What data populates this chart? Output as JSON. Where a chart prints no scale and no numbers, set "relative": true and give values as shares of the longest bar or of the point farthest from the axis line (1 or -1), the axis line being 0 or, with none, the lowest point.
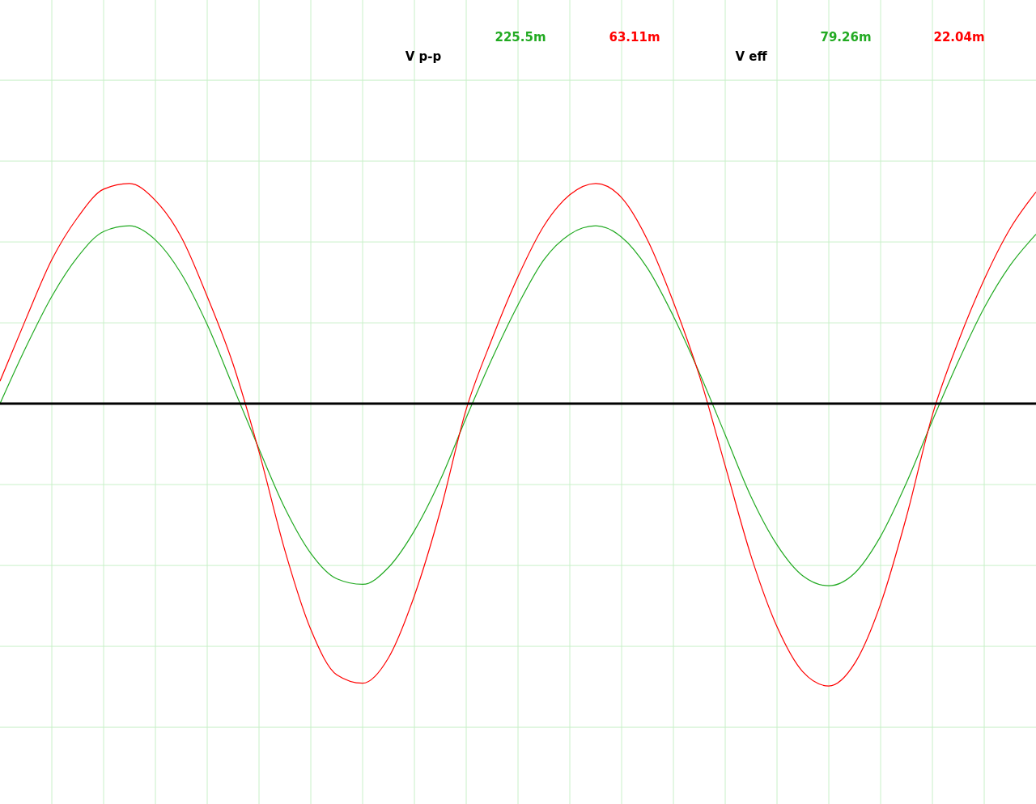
{
  "chart_data": {
    "type": "line",
    "relative": true,
    "grid": true,
    "marker": "none",
    "line_style": "solid",
    "categories": [
      null,
      null,
      null,
      null,
      null,
      null,
      null,
      null,
      null,
      null,
      null,
      null,
      null,
      null,
      null,
      null,
      null,
      null,
      null,
      null,
      null,
      null,
      null,
      null,
      null,
      null,
      null,
      null,
      null,
      null,
      null,
      null,
      null,
      null,
      null,
      null,
      null,
      null,
      null,
      null,
      null
    ],
    "series": [
      {
        "color": "#22aa22",
        "values": [
          0,
          0.2,
          0.38,
          0.52,
          0.61,
          0.63,
          0.58,
          0.46,
          0.28,
          0.06,
          -0.16,
          -0.37,
          -0.53,
          -0.62,
          -0.64,
          -0.58,
          -0.45,
          -0.27,
          -0.05,
          0.16,
          0.35,
          0.51,
          0.6,
          0.63,
          0.59,
          0.48,
          0.31,
          0.11,
          -0.11,
          -0.33,
          -0.5,
          -0.61,
          -0.645,
          -0.6,
          -0.47,
          -0.28,
          -0.06,
          0.15,
          0.34,
          0.49,
          0.6
        ]
      },
      {
        "color": "#ff0000",
        "values": [
          0.08,
          0.3,
          0.51,
          0.66,
          0.76,
          0.78,
          0.72,
          0.59,
          0.38,
          0.14,
          -0.17,
          -0.52,
          -0.8,
          -0.96,
          -0.99,
          -0.9,
          -0.68,
          -0.38,
          -0.02,
          0.23,
          0.45,
          0.63,
          0.74,
          0.78,
          0.73,
          0.58,
          0.36,
          0.1,
          -0.22,
          -0.54,
          -0.79,
          -0.95,
          -1,
          -0.92,
          -0.71,
          -0.4,
          -0.04,
          0.22,
          0.44,
          0.62,
          0.75
        ]
      }
    ],
    "annotations": [
      "V p-p",
      "225.5m",
      "63.11m",
      "V eff",
      "79.26m",
      "22.04m"
    ]
  }
}
